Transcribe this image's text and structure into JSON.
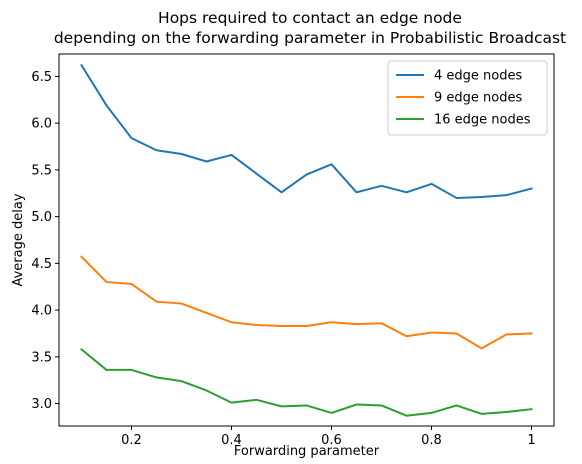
{
  "chart_data": {
    "type": "line",
    "title_lines": [
      "Hops required to contact an edge node",
      "depending on the forwarding parameter in Probabilistic Broadcast"
    ],
    "xlabel": "Forwarding parameter",
    "ylabel": "Average delay",
    "xlim": [
      0.055,
      1.045
    ],
    "ylim": [
      2.76,
      6.74
    ],
    "xticks": [
      0.2,
      0.4,
      0.6,
      0.8,
      1.0
    ],
    "xtick_labels": [
      "0.2",
      "0.4",
      "0.6",
      "0.8",
      "1"
    ],
    "yticks": [
      3.0,
      3.5,
      4.0,
      4.5,
      5.0,
      5.5,
      6.0,
      6.5
    ],
    "ytick_labels": [
      "3.0",
      "3.5",
      "4.0",
      "4.5",
      "5.0",
      "5.5",
      "6.0",
      "6.5"
    ],
    "grid": false,
    "legend_position": "top-right",
    "x": [
      0.1,
      0.15,
      0.2,
      0.25,
      0.3,
      0.35,
      0.4,
      0.45,
      0.5,
      0.55,
      0.6,
      0.65,
      0.7,
      0.75,
      0.8,
      0.85,
      0.9,
      0.95,
      1.0
    ],
    "series": [
      {
        "name": "4 edge nodes",
        "color": "#1f77b4",
        "values": [
          6.62,
          6.19,
          5.84,
          5.71,
          5.67,
          5.59,
          5.66,
          5.46,
          5.26,
          5.45,
          5.56,
          5.26,
          5.33,
          5.26,
          5.35,
          5.2,
          5.21,
          5.23,
          5.3
        ]
      },
      {
        "name": "9 edge nodes",
        "color": "#ff7f0e",
        "values": [
          4.57,
          4.3,
          4.28,
          4.09,
          4.07,
          3.97,
          3.87,
          3.84,
          3.83,
          3.83,
          3.87,
          3.85,
          3.86,
          3.72,
          3.76,
          3.75,
          3.59,
          3.74,
          3.75
        ]
      },
      {
        "name": "16 edge nodes",
        "color": "#2ca02c",
        "values": [
          3.58,
          3.36,
          3.36,
          3.28,
          3.24,
          3.14,
          3.01,
          3.04,
          2.97,
          2.98,
          2.9,
          2.99,
          2.98,
          2.87,
          2.9,
          2.98,
          2.89,
          2.91,
          2.94
        ]
      }
    ]
  }
}
